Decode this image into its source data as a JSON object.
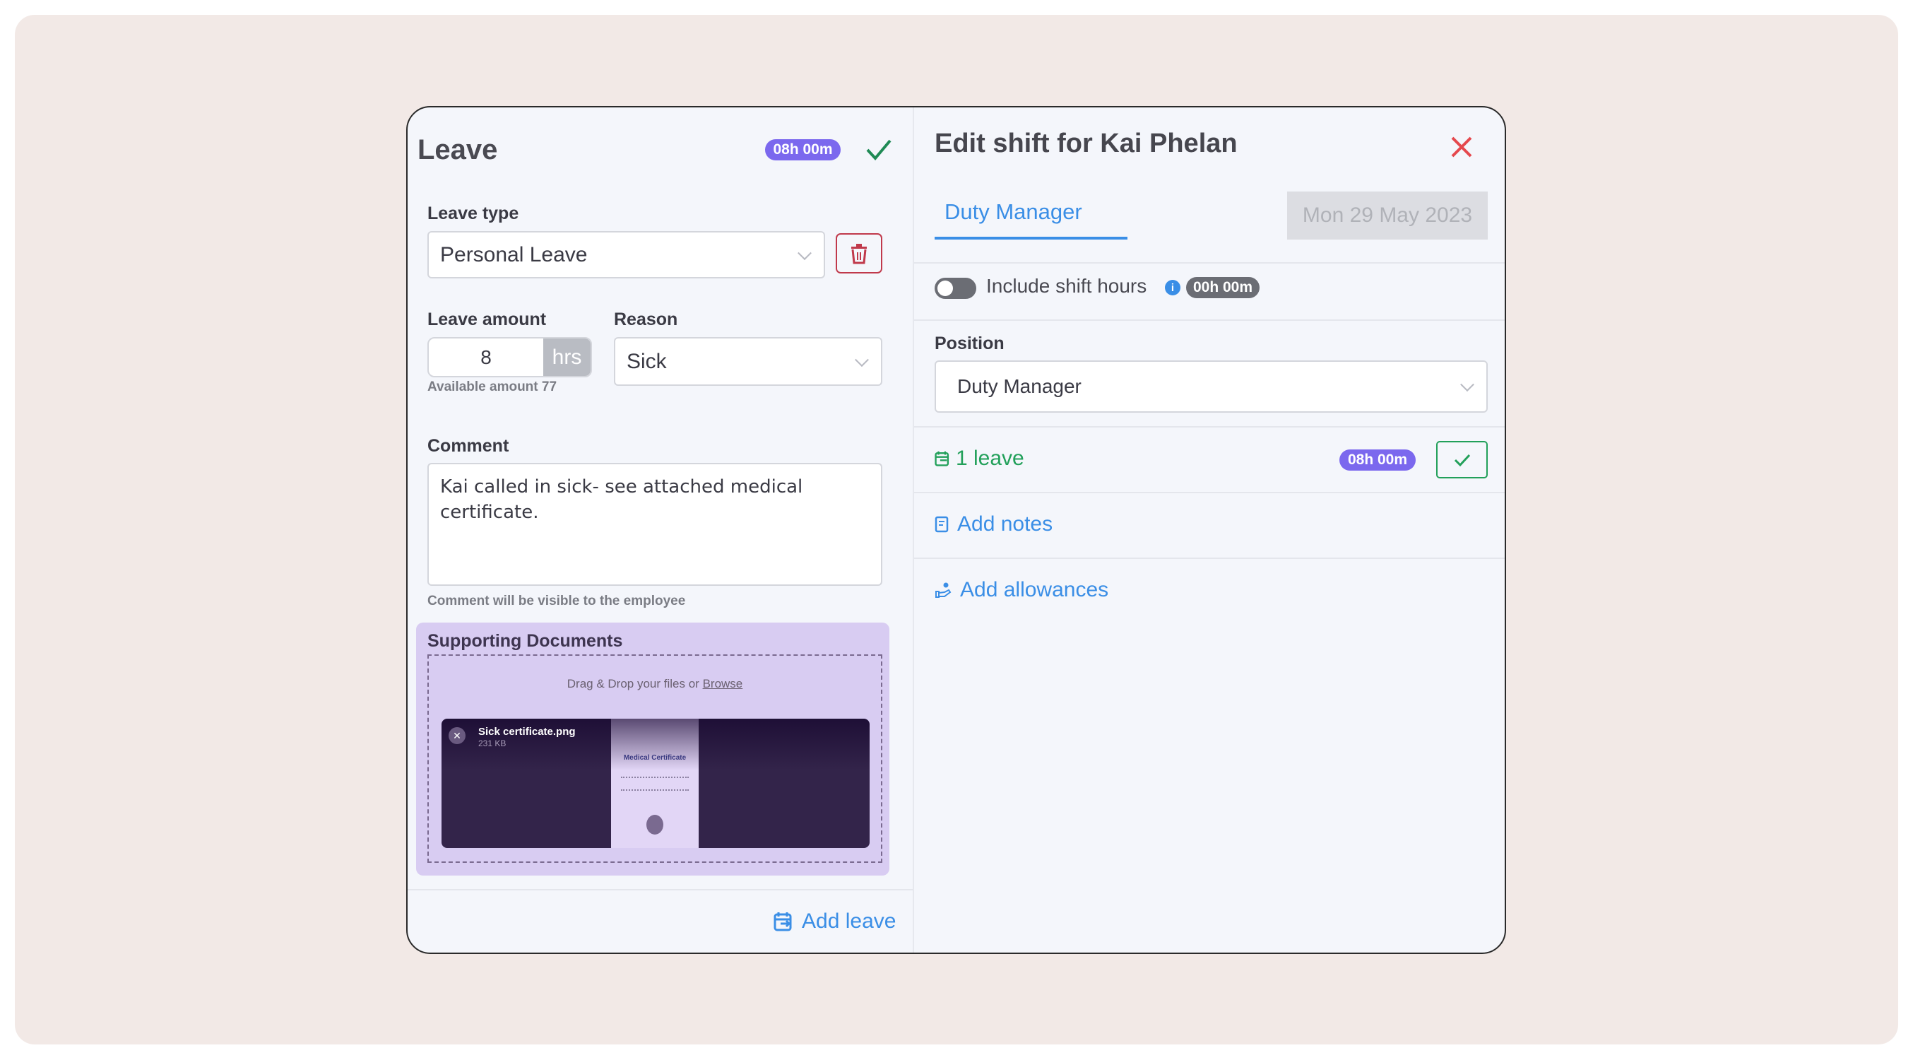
{
  "leave_panel": {
    "title": "Leave",
    "hours_badge": "08h 00m",
    "leave_type_label": "Leave type",
    "leave_type_value": "Personal Leave",
    "leave_amount_label": "Leave amount",
    "leave_amount_value": "8",
    "leave_amount_unit": "hrs",
    "available_amount": "Available amount 77",
    "reason_label": "Reason",
    "reason_value": "Sick",
    "comment_label": "Comment",
    "comment_value": "Kai called in sick- see attached medical certificate.",
    "comment_hint": "Comment will be visible to the employee",
    "supporting_docs": {
      "title": "Supporting Documents",
      "drop_text": "Drag & Drop your files or",
      "browse_link": "Browse",
      "file": {
        "name": "Sick certificate.png",
        "size": "231 KB",
        "preview_title": "Medical Certificate"
      }
    },
    "add_leave_label": "Add leave"
  },
  "shift_panel": {
    "title": "Edit shift for Kai Phelan",
    "tab": "Duty Manager",
    "date": "Mon 29 May 2023",
    "include_shift_hours_label": "Include shift hours",
    "include_shift_hours_on": false,
    "shift_hours_badge": "00h 00m",
    "position_label": "Position",
    "position_value": "Duty Manager",
    "leave_count": "1 leave",
    "leave_badge": "08h 00m",
    "add_notes": "Add notes",
    "add_allowances": "Add allowances"
  },
  "colors": {
    "accent": "#3a8ee6",
    "badge": "#7b68ee",
    "success": "#22a05a",
    "danger": "#e5484d"
  }
}
